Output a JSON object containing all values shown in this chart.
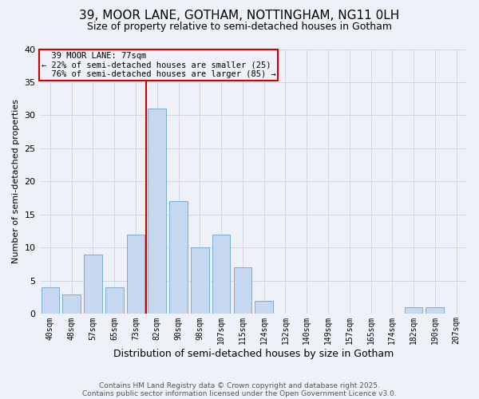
{
  "title": "39, MOOR LANE, GOTHAM, NOTTINGHAM, NG11 0LH",
  "subtitle": "Size of property relative to semi-detached houses in Gotham",
  "xlabel": "Distribution of semi-detached houses by size in Gotham",
  "ylabel": "Number of semi-detached properties",
  "footnote1": "Contains HM Land Registry data © Crown copyright and database right 2025.",
  "footnote2": "Contains public sector information licensed under the Open Government Licence v3.0.",
  "bar_labels": [
    "40sqm",
    "48sqm",
    "57sqm",
    "65sqm",
    "73sqm",
    "82sqm",
    "90sqm",
    "98sqm",
    "107sqm",
    "115sqm",
    "124sqm",
    "132sqm",
    "140sqm",
    "149sqm",
    "157sqm",
    "165sqm",
    "174sqm",
    "182sqm",
    "190sqm",
    "207sqm"
  ],
  "bar_values": [
    4,
    3,
    9,
    4,
    12,
    31,
    17,
    10,
    12,
    7,
    2,
    0,
    0,
    0,
    0,
    0,
    0,
    1,
    1,
    0
  ],
  "bar_color": "#c5d8f0",
  "bar_edge_color": "#7aadd4",
  "property_line_idx": 4.5,
  "property_label": "39 MOOR LANE: 77sqm",
  "pct_smaller": 22,
  "pct_smaller_n": 25,
  "pct_larger": 76,
  "pct_larger_n": 85,
  "annotation_box_color": "#cc0000",
  "line_color": "#cc0000",
  "grid_color": "#d0d8e8",
  "bg_color": "#eef2f8",
  "ylim": [
    0,
    40
  ],
  "yticks": [
    0,
    5,
    10,
    15,
    20,
    25,
    30,
    35,
    40
  ]
}
